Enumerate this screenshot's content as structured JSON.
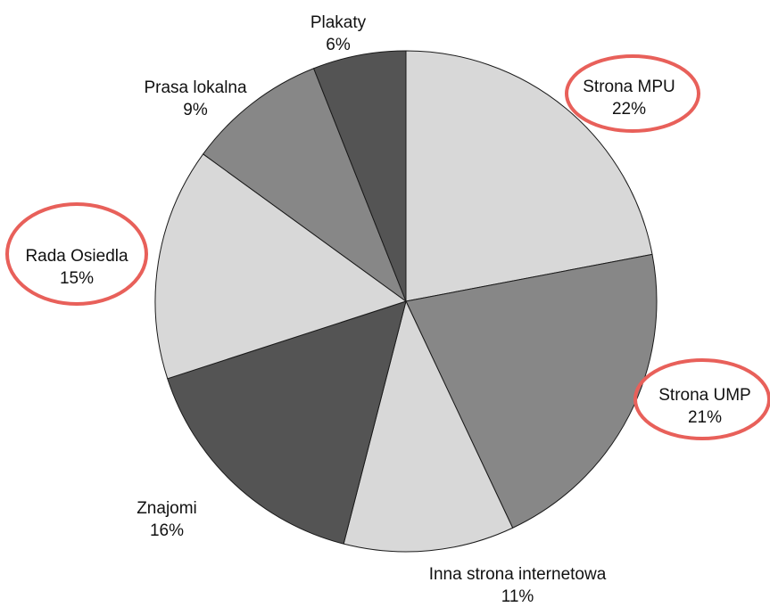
{
  "chart_data": {
    "type": "pie",
    "title": "",
    "start_angle_deg": 0,
    "direction": "clockwise",
    "slices": [
      {
        "label": "Strona MPU",
        "value": 22,
        "value_label": "22%",
        "color": "#d8d8d8",
        "highlighted": true
      },
      {
        "label": "Strona UMP",
        "value": 21,
        "value_label": "21%",
        "color": "#878787",
        "highlighted": true
      },
      {
        "label": "Inna strona internetowa",
        "value": 11,
        "value_label": "11%",
        "color": "#d8d8d8",
        "highlighted": false
      },
      {
        "label": "Znajomi",
        "value": 16,
        "value_label": "16%",
        "color": "#545454",
        "highlighted": false
      },
      {
        "label": "Rada Osiedla",
        "value": 15,
        "value_label": "15%",
        "color": "#d8d8d8",
        "highlighted": true
      },
      {
        "label": "Prasa lokalna",
        "value": 9,
        "value_label": "9%",
        "color": "#878787",
        "highlighted": false
      },
      {
        "label": "Plakaty",
        "value": 6,
        "value_label": "6%",
        "color": "#545454",
        "highlighted": false
      }
    ],
    "highlight_color": "#e8605a"
  }
}
